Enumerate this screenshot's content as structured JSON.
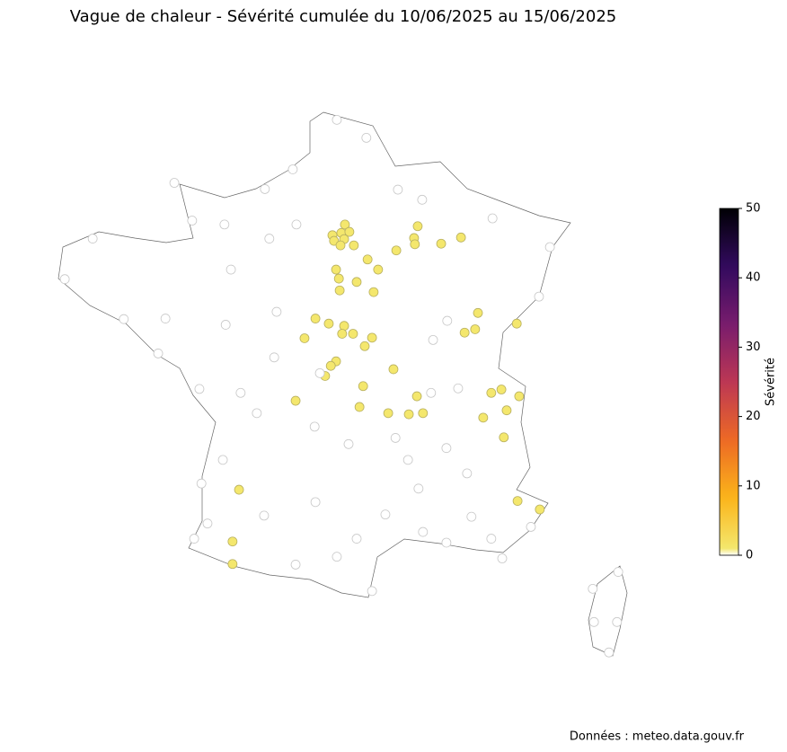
{
  "chart_data": {
    "type": "scatter",
    "title": "Vague de chaleur - Sévérité cumulée du 10/06/2025 au 15/06/2025",
    "colorbar_label": "Sévérité",
    "source": "Données : meteo.data.gouv.fr",
    "clim": [
      0,
      50
    ],
    "cticks": [
      0,
      10,
      20,
      30,
      40,
      50
    ],
    "colors": [
      "#ffffff",
      "#f3ee78",
      "#fbb41a",
      "#ed6925",
      "#bc3754",
      "#781c6d",
      "#320a5e",
      "#000004"
    ],
    "xlim": [
      -5.5,
      10
    ],
    "ylim": [
      41,
      51.5
    ],
    "x": [
      2.51,
      2.2,
      2.42,
      2.62,
      2.24,
      2.49,
      2.4,
      2.73,
      4.31,
      4.22,
      4.24,
      4.89,
      5.38,
      3.78,
      3.07,
      3.33,
      2.29,
      2.36,
      2.8,
      2.38,
      3.22,
      5.8,
      1.78,
      2.11,
      2.49,
      2.44,
      2.71,
      3.18,
      1.51,
      3.0,
      5.73,
      5.47,
      6.76,
      2.29,
      2.16,
      2.02,
      3.71,
      2.96,
      4.29,
      1.29,
      6.38,
      6.13,
      6.82,
      2.87,
      3.58,
      4.09,
      4.44,
      6.51,
      5.93,
      6.44,
      -0.11,
      6.78,
      7.33,
      -0.27,
      -0.27,
      2.31,
      3.04,
      1.22,
      -1.71,
      -1.27,
      -3.73,
      -4.42,
      -2.96,
      -1.93,
      -0.31,
      0.64,
      3.82,
      4.42,
      6.16,
      7.58,
      7.31,
      5.04,
      4.69,
      0.82,
      -0.44,
      -2.11,
      -1.09,
      -0.07,
      0.33,
      1.76,
      2.6,
      4.07,
      5.02,
      5.53,
      4.33,
      -0.51,
      -1.04,
      -1.22,
      -0.89,
      0.51,
      1.29,
      2.31,
      3.18,
      2.8,
      4.44,
      5.02,
      6.13,
      6.4,
      7.11,
      5.64,
      3.51,
      1.78,
      9.27,
      8.64,
      9.24,
      8.67,
      9.04,
      -0.47,
      1.31,
      0.53,
      1.89,
      3.76,
      5.31,
      4.64,
      0.76
    ],
    "y": [
      49.06,
      48.87,
      48.91,
      48.93,
      48.77,
      48.8,
      48.69,
      48.69,
      49.03,
      48.82,
      48.71,
      48.72,
      48.83,
      48.6,
      48.44,
      48.26,
      48.26,
      48.1,
      48.04,
      47.89,
      47.86,
      47.49,
      47.39,
      47.3,
      47.26,
      47.12,
      47.12,
      47.05,
      47.04,
      46.9,
      47.2,
      47.14,
      47.3,
      46.63,
      46.55,
      46.37,
      46.49,
      46.19,
      46.01,
      45.93,
      46.13,
      46.07,
      46.01,
      45.82,
      45.71,
      45.69,
      45.71,
      45.76,
      45.63,
      45.28,
      44.35,
      44.15,
      44.0,
      43.43,
      43.03,
      50.92,
      50.6,
      50.04,
      49.8,
      49.13,
      48.81,
      48.09,
      47.38,
      47.39,
      48.26,
      48.81,
      49.68,
      49.5,
      49.17,
      48.66,
      47.78,
      47.35,
      47.01,
      47.51,
      47.28,
      46.77,
      46.14,
      46.07,
      45.71,
      45.47,
      45.16,
      44.88,
      45.09,
      44.64,
      44.37,
      44.88,
      44.46,
      43.48,
      43.75,
      43.89,
      43.02,
      43.16,
      42.55,
      43.48,
      43.6,
      43.41,
      43.48,
      43.13,
      43.69,
      43.87,
      43.91,
      44.13,
      42.89,
      42.59,
      42.0,
      42.0,
      41.46,
      49.06,
      49.06,
      49.69,
      46.42,
      45.27,
      46.15,
      46.07,
      46.7
    ],
    "values": [
      1,
      1,
      1,
      1,
      1,
      1,
      1,
      1,
      1,
      1,
      1,
      1,
      1,
      1,
      1,
      1,
      1,
      1,
      1,
      1,
      1,
      1,
      1,
      1,
      1,
      1,
      1,
      1,
      1,
      1,
      1,
      1,
      1,
      1,
      1,
      1,
      1,
      1,
      1,
      1,
      1,
      1,
      1,
      1,
      1,
      1,
      1,
      1,
      1,
      1,
      1,
      1,
      1,
      1,
      1,
      0,
      0,
      0,
      0,
      0,
      0,
      0,
      0,
      0,
      0,
      0,
      0,
      0,
      0,
      0,
      0,
      0,
      0,
      0,
      0,
      0,
      0,
      0,
      0,
      0,
      0,
      0,
      0,
      0,
      0,
      0,
      0,
      0,
      0,
      0,
      0,
      0,
      0,
      0,
      0,
      0,
      0,
      0,
      0,
      0,
      0,
      0,
      0,
      0,
      0,
      0,
      0,
      0,
      0,
      0,
      0,
      0,
      0,
      0,
      0
    ]
  }
}
